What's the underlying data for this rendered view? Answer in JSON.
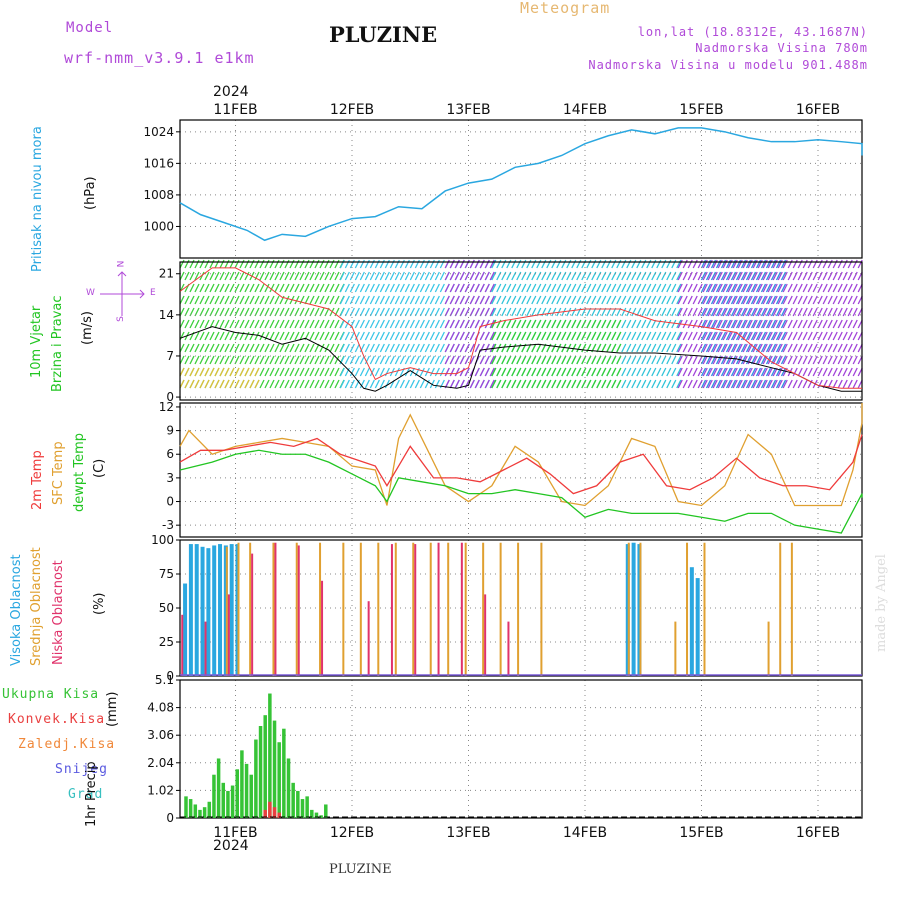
{
  "header": {
    "model_label": "Model",
    "model_value": "wrf-nmm_v3.9.1  e1km",
    "title": "PLUZINE",
    "meteogram_label": "Meteogram",
    "lonlat": "lon,lat (18.8312E, 43.1687N)",
    "elevation": "Nadmorska Visina 780m",
    "model_elevation": "Nadmorska Visina u modelu 901.488m",
    "year_top": "2024",
    "year_bottom": "2024",
    "footer": "PLUZINE",
    "watermark": "made by Angel"
  },
  "colors": {
    "accent_purple": "#b04ad8",
    "pressure": "#2aa7e0",
    "temp2m": "#ef3b3b",
    "sfc": "#e0a030",
    "dewpt": "#22c522",
    "cloud_high": "#2aa7e0",
    "cloud_mid": "#e0a030",
    "cloud_low": "#e0336b",
    "precip_total": "#36c336",
    "precip_conv": "#e94040",
    "precip_frozen": "#f0883a",
    "snow": "#5a5ae0",
    "grad": "#38c0c0"
  },
  "panel_labels": {
    "pressure": [
      "Pritisak na nivou mora",
      "(hPa)"
    ],
    "wind": [
      "10m Vjetar",
      "Brzina i Pravac",
      "(m/s)"
    ],
    "wind_rose": {
      "n": "N",
      "s": "S",
      "w": "W",
      "e": "E"
    },
    "temp": [
      "2m Temp",
      "SFC Temp",
      "dewpt Temp",
      "(C)"
    ],
    "cloud": [
      "Visoka Oblacnost",
      "Srednja Oblacnost",
      "Niska Oblacnost",
      "(%)"
    ],
    "precip_legend": [
      "Ukupna Kisa",
      "Konvek.Kisa",
      "Zaledj.Kisa",
      "Snijeg",
      "Grad"
    ],
    "precip_axis": [
      "1hr Precip",
      "(mm)"
    ]
  },
  "chart_data": [
    {
      "type": "line",
      "title": "Pritisak na nivou mora",
      "ylabel": "(hPa)",
      "x_unit": "days from 10FEB 00Z",
      "date_ticks": [
        "11FEB",
        "12FEB",
        "13FEB",
        "14FEB",
        "15FEB",
        "16FEB"
      ],
      "yticks": [
        "1000",
        "1008",
        "1016",
        "1024"
      ],
      "ylim": [
        992,
        1027
      ],
      "grid": true,
      "series": [
        {
          "x": [
            0.5,
            0.7,
            0.9,
            1.1,
            1.25,
            1.4,
            1.6,
            1.8,
            2.0,
            2.2,
            2.4,
            2.6,
            2.8,
            3.0,
            3.2,
            3.4,
            3.6,
            3.8,
            4.0,
            4.2,
            4.4,
            4.6,
            4.8,
            5.0,
            5.2,
            5.4,
            5.6,
            5.8,
            6.0,
            6.2,
            6.4,
            6.5
          ],
          "y": [
            1006,
            1003,
            1001,
            999,
            996.5,
            998,
            997.5,
            1000,
            1002,
            1002.5,
            1005,
            1004.5,
            1009,
            1011,
            1012,
            1015,
            1016,
            1018,
            1021,
            1023,
            1024.5,
            1023.5,
            1025,
            1025,
            1024,
            1022.5,
            1021.5,
            1021.5,
            1022,
            1021.5,
            1021,
            1018
          ]
        }
      ]
    },
    {
      "type": "line",
      "title": "10m Vjetar Brzina i Pravac",
      "ylabel": "(m/s)",
      "yticks": [
        "0",
        "7",
        "14",
        "21"
      ],
      "ylim": [
        -0.5,
        23
      ],
      "grid": true,
      "series": [
        {
          "name": "speed",
          "x": [
            0.5,
            0.8,
            1.0,
            1.2,
            1.4,
            1.6,
            1.8,
            2.0,
            2.1,
            2.2,
            2.3,
            2.5,
            2.7,
            2.9,
            3.0,
            3.1,
            3.3,
            3.6,
            4.0,
            4.3,
            4.6,
            5.0,
            5.3,
            5.6,
            5.8,
            6.0,
            6.2,
            6.5
          ],
          "y": [
            10,
            12,
            11,
            10.5,
            9,
            10,
            8,
            4,
            1.5,
            1,
            2,
            4.5,
            2,
            1.5,
            2,
            8,
            8.5,
            9,
            8,
            7.5,
            7.5,
            7,
            6.5,
            5,
            4,
            2,
            1,
            1
          ]
        },
        {
          "name": "gust",
          "x": [
            0.5,
            0.8,
            1.0,
            1.2,
            1.4,
            1.6,
            1.8,
            2.0,
            2.1,
            2.2,
            2.3,
            2.5,
            2.7,
            2.9,
            3.0,
            3.1,
            3.3,
            3.6,
            4.0,
            4.3,
            4.6,
            5.0,
            5.3,
            5.6,
            5.8,
            6.0,
            6.2,
            6.5
          ],
          "y": [
            18,
            22,
            22,
            20,
            17,
            16,
            15,
            12,
            7,
            3,
            4,
            5,
            4,
            4,
            5,
            12,
            13,
            14,
            15,
            15,
            13,
            12,
            11,
            6,
            4,
            2,
            1.5,
            1.5
          ]
        }
      ]
    },
    {
      "type": "line",
      "title": "2m Temp / SFC Temp / dewpt Temp",
      "ylabel": "(C)",
      "yticks": [
        "-3",
        "0",
        "3",
        "6",
        "9",
        "12"
      ],
      "ylim": [
        -4.5,
        12.5
      ],
      "grid": true,
      "series": [
        {
          "name": "2m Temp",
          "x": [
            0.5,
            0.7,
            0.9,
            1.1,
            1.3,
            1.5,
            1.7,
            1.9,
            2.1,
            2.2,
            2.3,
            2.4,
            2.5,
            2.7,
            2.9,
            3.1,
            3.3,
            3.5,
            3.7,
            3.9,
            4.1,
            4.3,
            4.5,
            4.7,
            4.9,
            5.1,
            5.3,
            5.5,
            5.7,
            5.9,
            6.1,
            6.3,
            6.5
          ],
          "y": [
            5,
            6.5,
            6.5,
            7,
            7.5,
            7,
            8,
            6,
            5,
            4.5,
            2,
            4.5,
            7,
            3,
            3,
            2.5,
            4,
            5.5,
            3.5,
            1,
            2,
            5,
            6,
            2,
            1.5,
            3,
            5.5,
            3,
            2,
            2,
            1.5,
            5,
            8.5
          ]
        },
        {
          "name": "SFC Temp",
          "x": [
            0.5,
            0.6,
            0.8,
            1.0,
            1.2,
            1.4,
            1.6,
            1.8,
            2.0,
            2.2,
            2.3,
            2.4,
            2.5,
            2.6,
            2.8,
            3.0,
            3.2,
            3.4,
            3.6,
            3.8,
            4.0,
            4.2,
            4.4,
            4.6,
            4.8,
            5.0,
            5.2,
            5.4,
            5.6,
            5.8,
            6.0,
            6.2,
            6.3,
            6.4,
            6.5
          ],
          "y": [
            7,
            9,
            6,
            7,
            7.5,
            8,
            7.5,
            7,
            4.5,
            4,
            -0.5,
            8,
            11,
            8,
            2,
            0,
            2,
            7,
            5,
            0,
            -0.5,
            2,
            8,
            7,
            0,
            -0.5,
            2,
            8.5,
            6,
            -0.5,
            -0.5,
            -0.5,
            4,
            10,
            12.5
          ]
        },
        {
          "name": "dewpt Temp",
          "x": [
            0.5,
            0.8,
            1.0,
            1.2,
            1.4,
            1.6,
            1.8,
            2.0,
            2.2,
            2.3,
            2.4,
            2.6,
            2.8,
            3.0,
            3.2,
            3.4,
            3.6,
            3.8,
            4.0,
            4.2,
            4.4,
            4.6,
            4.8,
            5.0,
            5.2,
            5.4,
            5.6,
            5.8,
            6.0,
            6.2,
            6.4,
            6.5
          ],
          "y": [
            4,
            5,
            6,
            6.5,
            6,
            6,
            5,
            3.5,
            2,
            0,
            3,
            2.5,
            2,
            1,
            1,
            1.5,
            1,
            0.5,
            -2,
            -1,
            -1.5,
            -1.5,
            -1.5,
            -2,
            -2.5,
            -1.5,
            -1.5,
            -3,
            -3.5,
            -4,
            1,
            0.5
          ]
        }
      ]
    },
    {
      "type": "bar",
      "title": "Visoka / Srednja / Niska Oblacnost",
      "ylabel": "(%)",
      "yticks": [
        "0",
        "25",
        "50",
        "75",
        "100"
      ],
      "ylim": [
        0,
        100
      ],
      "grid": true,
      "series": [
        {
          "name": "Visoka Oblacnost",
          "x": [
            0.55,
            0.6,
            0.65,
            0.7,
            0.75,
            0.8,
            0.85,
            0.9,
            0.95,
            1.0,
            4.35,
            4.4,
            4.45,
            4.9,
            4.95
          ],
          "values": [
            68,
            97,
            97,
            95,
            94,
            96,
            97,
            96,
            97,
            97,
            97,
            98,
            97,
            80,
            72
          ]
        },
        {
          "name": "Srednja Oblacnost",
          "x": [
            0.9,
            1.0,
            1.1,
            1.3,
            1.5,
            1.7,
            1.9,
            2.05,
            2.2,
            2.35,
            2.5,
            2.65,
            2.8,
            2.95,
            3.1,
            3.25,
            3.4,
            3.6,
            4.35,
            4.45,
            4.75,
            4.85,
            5.0,
            5.55,
            5.65,
            5.75
          ],
          "values": [
            95,
            98,
            98,
            98,
            98,
            98,
            98,
            98,
            98,
            98,
            98,
            98,
            98,
            98,
            98,
            98,
            98,
            98,
            98,
            98,
            40,
            98,
            98,
            40,
            98,
            98
          ]
        },
        {
          "name": "Niska Oblacnost",
          "x": [
            0.5,
            0.7,
            0.9,
            1.1,
            1.3,
            1.5,
            1.7,
            2.1,
            2.3,
            2.5,
            2.7,
            2.9,
            3.1,
            3.3
          ],
          "values": [
            45,
            40,
            60,
            90,
            98,
            96,
            70,
            55,
            97,
            97,
            98,
            98,
            60,
            40
          ]
        }
      ]
    },
    {
      "type": "bar",
      "title": "1hr Precip",
      "ylabel": "(mm)",
      "yticks": [
        "0",
        "1.02",
        "2.04",
        "3.06",
        "4.08",
        "5.1"
      ],
      "ylim": [
        0,
        5.1
      ],
      "grid": true,
      "series": [
        {
          "name": "Ukupna Kisa",
          "x": [
            0.52,
            0.56,
            0.6,
            0.64,
            0.68,
            0.72,
            0.76,
            0.8,
            0.84,
            0.88,
            0.92,
            0.96,
            1.0,
            1.04,
            1.08,
            1.12,
            1.16,
            1.2,
            1.24,
            1.28,
            1.32,
            1.36,
            1.4,
            1.44,
            1.48,
            1.52,
            1.56,
            1.6,
            1.64,
            1.68,
            1.72,
            1.76
          ],
          "values": [
            0.2,
            0.8,
            0.7,
            0.5,
            0.3,
            0.4,
            0.6,
            1.6,
            2.2,
            1.3,
            1.0,
            1.2,
            1.8,
            2.5,
            2.0,
            1.6,
            2.9,
            3.4,
            3.8,
            4.6,
            3.6,
            2.8,
            3.3,
            2.2,
            1.3,
            1.0,
            0.7,
            0.8,
            0.3,
            0.2,
            0.1,
            0.5
          ]
        },
        {
          "name": "Konvek.Kisa",
          "x": [
            1.24,
            1.28,
            1.32,
            1.36
          ],
          "values": [
            0.3,
            0.6,
            0.4,
            0.2
          ]
        },
        {
          "name": "Zaledj.Kisa",
          "x": [],
          "values": []
        },
        {
          "name": "Snijeg",
          "x": [],
          "values": []
        },
        {
          "name": "Grad",
          "x": [],
          "values": []
        }
      ]
    }
  ]
}
